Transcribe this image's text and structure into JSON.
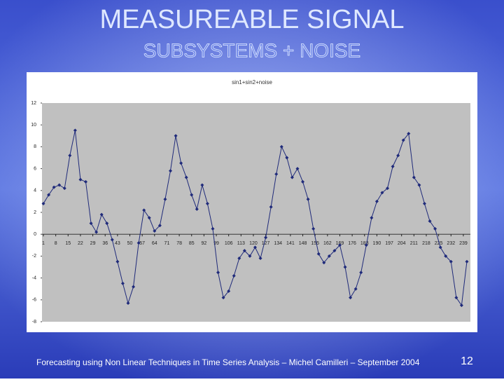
{
  "slide": {
    "title": "MEASUREABLE SIGNAL",
    "subtitle": "SUBSYSTEMS + NOISE",
    "footer": "Forecasting using Non Linear Techniques in Time Series Analysis – Michel Camilleri – September 2004",
    "page_number": "12"
  },
  "chart_data": {
    "type": "line",
    "title": "sin1+sin2+noise",
    "color": "#1f2a7a",
    "x": [
      1,
      4,
      7,
      10,
      13,
      16,
      19,
      22,
      25,
      28,
      31,
      34,
      37,
      40,
      43,
      46,
      49,
      52,
      55,
      58,
      61,
      64,
      67,
      70,
      73,
      76,
      79,
      82,
      85,
      88,
      91,
      94,
      97,
      100,
      103,
      106,
      109,
      112,
      115,
      118,
      121,
      124,
      127,
      130,
      133,
      136,
      139,
      142,
      145,
      148,
      151,
      154,
      157,
      160,
      163,
      166,
      169,
      172,
      175,
      178,
      181,
      184,
      187,
      190,
      193,
      196,
      199,
      202,
      205,
      208,
      211,
      214,
      217,
      220,
      223,
      226,
      229,
      232,
      235,
      238,
      241
    ],
    "values": [
      2.8,
      3.6,
      4.3,
      4.5,
      4.2,
      7.2,
      9.5,
      5.0,
      4.8,
      1.0,
      0.2,
      1.8,
      1.0,
      -0.5,
      -2.5,
      -4.5,
      -6.3,
      -4.8,
      -0.8,
      2.2,
      1.5,
      0.3,
      0.8,
      3.2,
      5.8,
      9.0,
      6.5,
      5.2,
      3.6,
      2.3,
      4.5,
      2.8,
      0.5,
      -3.5,
      -5.8,
      -5.2,
      -3.8,
      -2.2,
      -1.5,
      -2.0,
      -1.2,
      -2.2,
      -0.3,
      2.5,
      5.5,
      8.0,
      7.0,
      5.2,
      6.0,
      4.8,
      3.2,
      0.5,
      -1.8,
      -2.6,
      -2.0,
      -1.5,
      -1.0,
      -3.0,
      -5.8,
      -5.0,
      -3.5,
      -1.0,
      1.5,
      3.0,
      3.8,
      4.2,
      6.2,
      7.2,
      8.6,
      9.2,
      5.2,
      4.5,
      2.8,
      1.2,
      0.5,
      -1.2,
      -2.0,
      -2.5,
      -5.8,
      -6.5,
      -2.5
    ],
    "xlim": [
      1,
      243
    ],
    "xticks": [
      1,
      8,
      15,
      22,
      29,
      36,
      43,
      50,
      57,
      64,
      71,
      78,
      85,
      92,
      99,
      106,
      113,
      120,
      127,
      134,
      141,
      148,
      155,
      162,
      169,
      176,
      183,
      190,
      197,
      204,
      211,
      218,
      225,
      232,
      239
    ],
    "ylim": [
      -8,
      12
    ],
    "yticks": [
      -8,
      -6,
      -4,
      -2,
      0,
      2,
      4,
      6,
      8,
      10,
      12
    ]
  }
}
